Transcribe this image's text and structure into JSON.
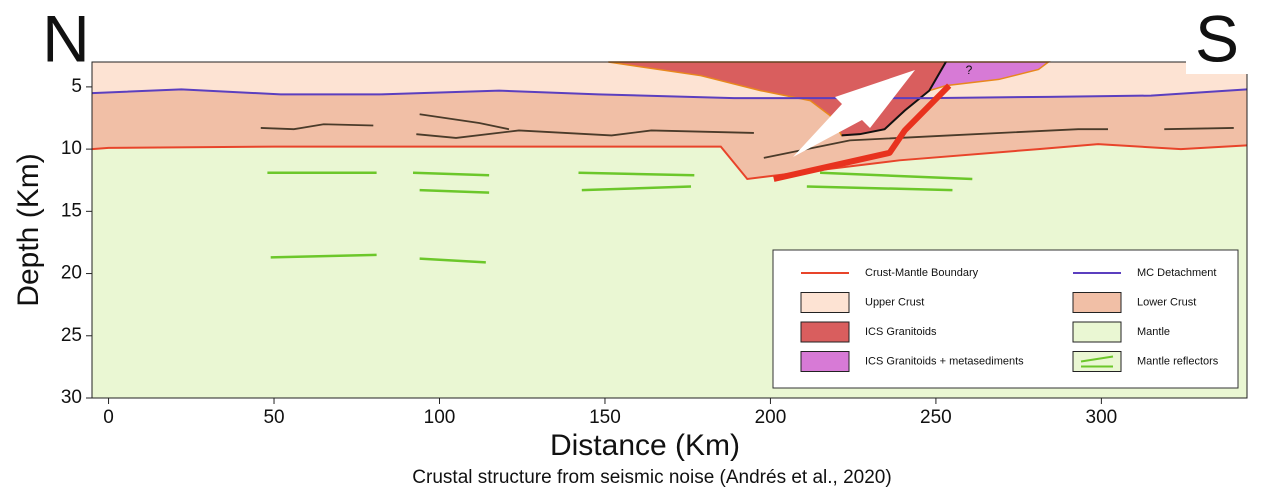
{
  "chart_data": {
    "type": "section",
    "title": "Crustal structure from seismic noise (Andrés et al., 2020)",
    "x_label": "Distance (Km)",
    "y_label": "Depth (Km)",
    "corner_labels": [
      "N",
      "S"
    ],
    "xlim": [
      -5,
      344
    ],
    "ylim": [
      3,
      30
    ],
    "y_inverted": true,
    "xticks": [
      0,
      50,
      100,
      150,
      200,
      250,
      300
    ],
    "yticks": [
      5,
      10,
      15,
      20,
      25,
      30
    ],
    "legend_position": "lower right",
    "layers": [
      {
        "name": "Upper Crust",
        "color": "#fde3d3"
      },
      {
        "name": "Lower Crust",
        "color": "#f1bfa6"
      },
      {
        "name": "Mantle",
        "color": "#eaf7d3"
      }
    ],
    "series": [
      {
        "name": "Crust-Mantle Boundary",
        "color": "#e8442a",
        "x": [
          -5,
          0,
          50,
          100,
          150,
          185,
          193,
          239,
          281,
          299,
          324,
          344
        ],
        "y": [
          10.0,
          9.9,
          9.8,
          9.8,
          9.8,
          9.8,
          12.4,
          10.9,
          10.0,
          9.6,
          10.0,
          9.7
        ]
      },
      {
        "name": "MC Detachment",
        "color": "#5b3fbf",
        "x": [
          -5,
          22,
          52,
          82,
          118,
          148,
          189,
          248,
          284,
          315,
          344
        ],
        "y": [
          5.5,
          5.2,
          5.6,
          5.6,
          5.3,
          5.6,
          5.9,
          5.9,
          5.8,
          5.7,
          5.2
        ]
      }
    ],
    "bodies": [
      {
        "name": "ICS Granitoids",
        "color": "#d95e5e",
        "x": [
          151,
          253,
          248,
          240.6,
          234.5,
          227,
          221.5,
          218,
          212,
          197,
          179
        ],
        "y": [
          3,
          3,
          5.3,
          6.9,
          8.4,
          8.8,
          8.9,
          7.3,
          6.1,
          5.3,
          4.1
        ]
      },
      {
        "name": "ICS Granitoids + metasediments",
        "color": "#d77ad6",
        "x": [
          253,
          284,
          281,
          269,
          253,
          248
        ],
        "y": [
          3,
          3,
          3.6,
          4.4,
          4.9,
          5.3
        ]
      }
    ],
    "thrust": {
      "color": "#e8321e",
      "x": [
        201,
        236,
        240.6,
        254
      ],
      "y": [
        12.4,
        10.3,
        8.5,
        4.9
      ]
    },
    "faults": {
      "color": "#4a3b2a",
      "segments": [
        {
          "x": [
            46,
            56,
            65,
            80
          ],
          "y": [
            8.3,
            8.4,
            8.0,
            8.1
          ]
        },
        {
          "x": [
            94,
            112,
            121
          ],
          "y": [
            7.2,
            7.9,
            8.4
          ]
        },
        {
          "x": [
            93,
            105,
            124,
            152,
            164,
            195
          ],
          "y": [
            8.8,
            9.1,
            8.5,
            8.9,
            8.5,
            8.7
          ]
        },
        {
          "x": [
            198,
            224,
            254,
            293,
            302
          ],
          "y": [
            10.7,
            9.3,
            8.9,
            8.4,
            8.4
          ]
        },
        {
          "x": [
            319,
            340
          ],
          "y": [
            8.4,
            8.3
          ]
        }
      ]
    },
    "reflectors": {
      "name": "Mantle reflectors",
      "color": "#6cc72a",
      "segments": [
        {
          "x": [
            48,
            81
          ],
          "y": [
            11.9,
            11.9
          ]
        },
        {
          "x": [
            92,
            115
          ],
          "y": [
            11.9,
            12.1
          ]
        },
        {
          "x": [
            94,
            115
          ],
          "y": [
            13.3,
            13.5
          ]
        },
        {
          "x": [
            142,
            177
          ],
          "y": [
            11.9,
            12.1
          ]
        },
        {
          "x": [
            143,
            176
          ],
          "y": [
            13.3,
            13.0
          ]
        },
        {
          "x": [
            49,
            81
          ],
          "y": [
            18.7,
            18.5
          ]
        },
        {
          "x": [
            94,
            114
          ],
          "y": [
            18.8,
            19.1
          ]
        },
        {
          "x": [
            215,
            261
          ],
          "y": [
            11.9,
            12.4
          ]
        },
        {
          "x": [
            211,
            255
          ],
          "y": [
            13.0,
            13.3
          ]
        }
      ]
    },
    "annotation": {
      "text": "?",
      "x": 260,
      "y": 3.7
    }
  }
}
